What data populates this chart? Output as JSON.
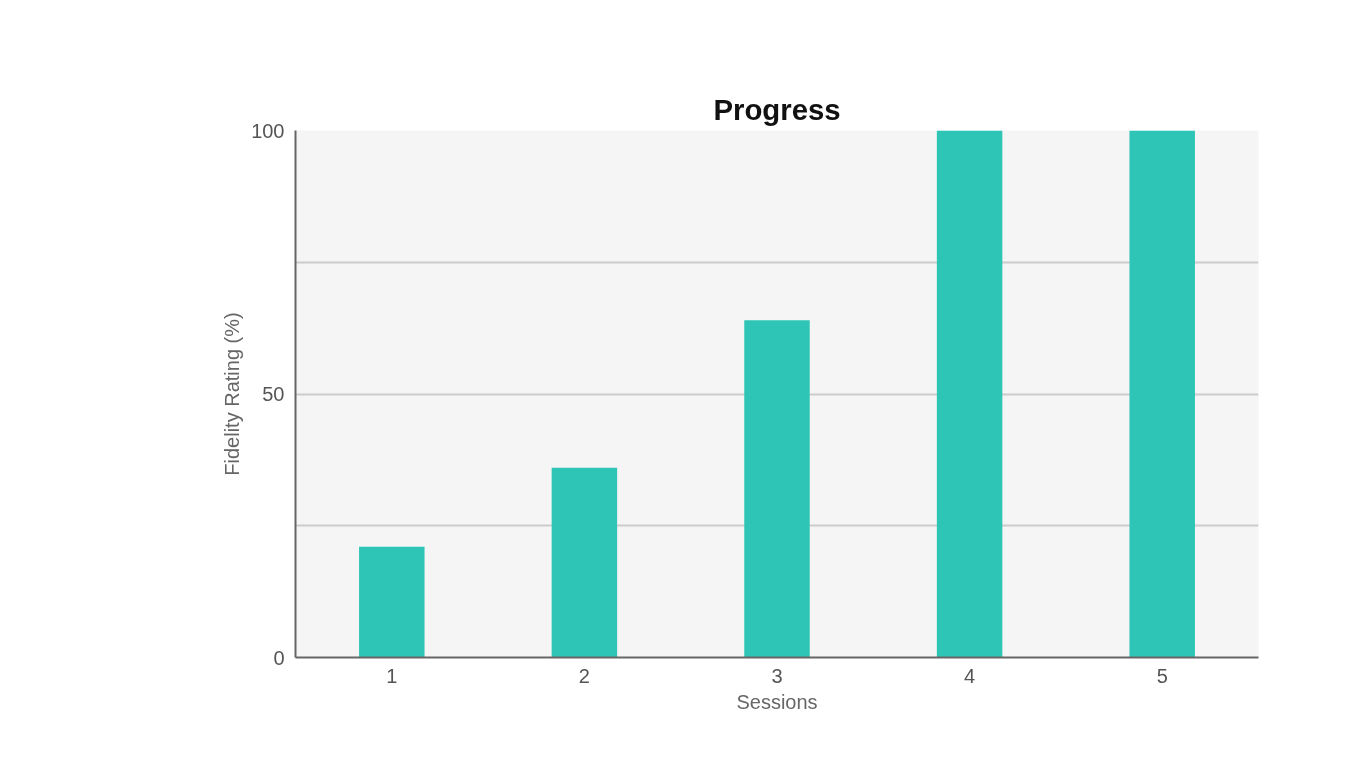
{
  "chart_data": {
    "type": "bar",
    "title": "Progress",
    "xlabel": "Sessions",
    "ylabel": "Fidelity Rating (%)",
    "categories": [
      "1",
      "2",
      "3",
      "4",
      "5"
    ],
    "values": [
      21,
      36,
      64,
      100,
      100
    ],
    "color": "#2ec5b6",
    "ylim": [
      0,
      100
    ],
    "yticks": [
      0,
      {
        "value": 25,
        "label": null
      },
      50,
      {
        "value": 75,
        "label": null
      },
      100
    ],
    "grid": "y"
  }
}
